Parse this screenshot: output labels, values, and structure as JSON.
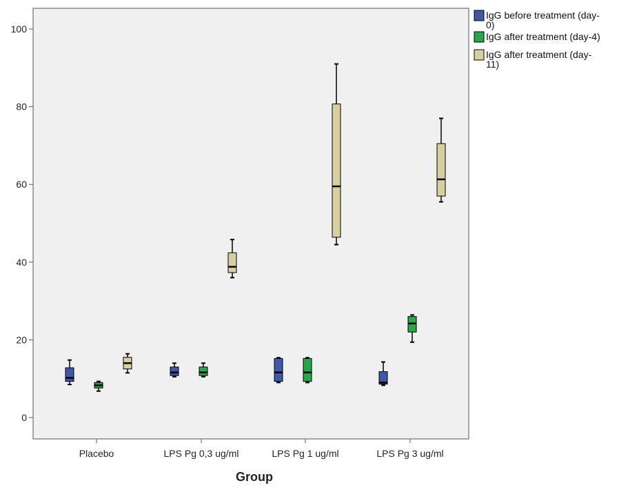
{
  "chart_data": {
    "type": "boxplot",
    "title": "",
    "xlabel": "Group",
    "ylabel": "",
    "ylim": [
      -5,
      108
    ],
    "y_ticks": [
      0,
      20,
      40,
      60,
      80,
      100
    ],
    "categories": [
      "Placebo",
      "LPS Pg 0,3 ug/ml",
      "LPS Pg 1 ug/ml",
      "LPS Pg 3 ug/ml"
    ],
    "legend_position": "top-right, outside plot",
    "plot_background": "#f0f0f0",
    "series": [
      {
        "name": "IgG before treatment (day-0)",
        "legend_lines": [
          "IgG before treatment (day-",
          "0)"
        ],
        "color": "#3f59a8",
        "boxes": [
          {
            "min": 8.5,
            "q1": 9.3,
            "median": 10.2,
            "q3": 12.8,
            "max": 14.8
          },
          {
            "min": 10.5,
            "q1": 10.8,
            "median": 11.6,
            "q3": 13.0,
            "max": 14.0
          },
          {
            "min": 9.0,
            "q1": 9.3,
            "median": 11.6,
            "q3": 15.2,
            "max": 15.4
          },
          {
            "min": 8.3,
            "q1": 8.6,
            "median": 9.0,
            "q3": 11.8,
            "max": 14.3
          }
        ]
      },
      {
        "name": "IgG after treatment (day-4)",
        "legend_lines": [
          "IgG after treatment (day-4)"
        ],
        "color": "#2aa64a",
        "boxes": [
          {
            "min": 6.8,
            "q1": 7.6,
            "median": 8.3,
            "q3": 9.0,
            "max": 9.3
          },
          {
            "min": 10.5,
            "q1": 10.8,
            "median": 11.6,
            "q3": 13.0,
            "max": 14.0
          },
          {
            "min": 9.0,
            "q1": 9.3,
            "median": 11.6,
            "q3": 15.2,
            "max": 15.4
          },
          {
            "min": 19.4,
            "q1": 22.0,
            "median": 24.2,
            "q3": 26.0,
            "max": 26.4
          }
        ]
      },
      {
        "name": "IgG after treatment (day-11)",
        "legend_lines": [
          "IgG after treatment (day-",
          "11)"
        ],
        "color": "#d6cf9f",
        "boxes": [
          {
            "min": 11.5,
            "q1": 12.5,
            "median": 14.0,
            "q3": 15.5,
            "max": 16.4
          },
          {
            "min": 36.0,
            "q1": 37.3,
            "median": 38.8,
            "q3": 42.4,
            "max": 45.8
          },
          {
            "min": 44.5,
            "q1": 46.4,
            "median": 59.5,
            "q3": 80.7,
            "max": 91.0
          },
          {
            "min": 55.5,
            "q1": 57.0,
            "median": 61.3,
            "q3": 70.5,
            "max": 77.0
          }
        ]
      }
    ]
  }
}
